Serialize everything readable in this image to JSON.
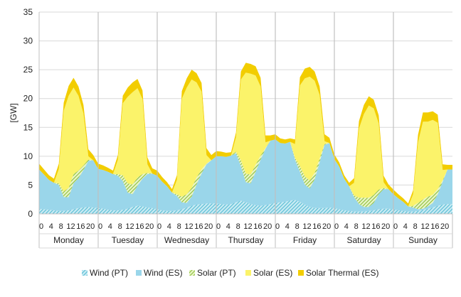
{
  "chart_data": {
    "type": "area",
    "stacked": true,
    "ylabel": "[GW]",
    "ylim": [
      0,
      35
    ],
    "yticks": [
      "0",
      "5",
      "10",
      "15",
      "20",
      "25",
      "30",
      "35"
    ],
    "grid": true,
    "legend_position": "bottom",
    "days": [
      "Monday",
      "Tuesday",
      "Wednesday",
      "Thursday",
      "Friday",
      "Saturday",
      "Sunday"
    ],
    "hour_ticks": [
      "0",
      "4",
      "8",
      "12",
      "16",
      "20"
    ],
    "x": [
      0,
      2,
      4,
      6,
      8,
      10,
      12,
      14,
      16,
      18,
      20,
      22
    ],
    "series": [
      {
        "name": "Wind (PT)",
        "color": "#8fd0dd",
        "pattern": "hatch",
        "values": [
          [
            0.9,
            0.8,
            0.7,
            0.6,
            0.5,
            0.5,
            0.6,
            0.8,
            1.0,
            1.1,
            1.2,
            1.1
          ],
          [
            1.0,
            0.9,
            0.7,
            0.6,
            0.6,
            0.7,
            0.9,
            1.2,
            1.4,
            1.3,
            1.1,
            1.0
          ],
          [
            0.8,
            0.6,
            0.5,
            0.5,
            0.6,
            0.8,
            1.1,
            1.4,
            1.6,
            1.7,
            1.8,
            1.8
          ],
          [
            1.8,
            1.7,
            1.6,
            1.7,
            2.0,
            2.3,
            2.0,
            1.7,
            1.5,
            1.4,
            1.5,
            1.7
          ],
          [
            1.9,
            2.0,
            2.1,
            2.3,
            2.4,
            2.1,
            1.6,
            1.2,
            1.0,
            1.0,
            1.0,
            1.1
          ],
          [
            1.0,
            0.8,
            0.6,
            0.5,
            0.4,
            0.4,
            0.4,
            0.5,
            0.6,
            0.8,
            0.9,
            0.9
          ],
          [
            0.8,
            0.6,
            0.5,
            0.4,
            0.4,
            0.5,
            0.7,
            0.9,
            1.1,
            1.4,
            1.6,
            1.7
          ]
        ]
      },
      {
        "name": "Wind (ES)",
        "color": "#9ad6ea",
        "values": [
          [
            6.8,
            6.0,
            5.2,
            4.8,
            4.5,
            2.4,
            2.3,
            4.5,
            5.2,
            6.5,
            8.0,
            8.2
          ],
          [
            6.8,
            6.7,
            6.6,
            6.3,
            6.0,
            5.0,
            2.8,
            2.2,
            3.5,
            4.8,
            5.8,
            6.0
          ],
          [
            5.8,
            5.0,
            4.3,
            3.2,
            2.5,
            1.2,
            0.8,
            1.6,
            3.5,
            5.3,
            6.8,
            7.5
          ],
          [
            8.2,
            8.3,
            8.3,
            8.4,
            8.5,
            6.0,
            3.5,
            3.6,
            5.8,
            8.0,
            9.8,
            11.0
          ],
          [
            11.0,
            10.3,
            10.1,
            10.2,
            7.0,
            5.2,
            3.5,
            3.2,
            5.0,
            8.0,
            11.0,
            11.2
          ],
          [
            8.5,
            7.4,
            5.5,
            4.3,
            2.5,
            1.3,
            0.8,
            0.7,
            1.3,
            2.6,
            3.4,
            3.4
          ],
          [
            2.6,
            2.1,
            1.6,
            0.9,
            0.7,
            0.3,
            0.2,
            0.4,
            0.8,
            2.0,
            4.0,
            6.0
          ]
        ]
      },
      {
        "name": "Solar (PT)",
        "color": "#b5d96b",
        "pattern": "hatch",
        "values": [
          [
            0.0,
            0.0,
            0.0,
            0.0,
            0.3,
            1.0,
            1.6,
            1.6,
            1.3,
            0.8,
            0.2,
            0.0
          ],
          [
            0.0,
            0.0,
            0.0,
            0.0,
            0.3,
            1.0,
            1.6,
            1.7,
            1.4,
            0.8,
            0.2,
            0.0
          ],
          [
            0.0,
            0.0,
            0.0,
            0.0,
            0.3,
            1.0,
            1.5,
            1.5,
            1.2,
            0.7,
            0.1,
            0.0
          ],
          [
            0.0,
            0.0,
            0.0,
            0.0,
            0.3,
            1.0,
            1.5,
            1.5,
            1.2,
            0.7,
            0.1,
            0.0
          ],
          [
            0.0,
            0.0,
            0.0,
            0.0,
            0.3,
            1.0,
            1.4,
            1.4,
            1.1,
            0.6,
            0.1,
            0.0
          ],
          [
            0.0,
            0.0,
            0.0,
            0.0,
            0.3,
            1.1,
            1.6,
            1.6,
            1.4,
            0.8,
            0.2,
            0.0
          ],
          [
            0.0,
            0.0,
            0.0,
            0.0,
            0.3,
            1.1,
            1.6,
            1.7,
            1.4,
            0.9,
            0.2,
            0.0
          ]
        ]
      },
      {
        "name": "Solar (ES)",
        "color": "#fbf36a",
        "values": [
          [
            0.0,
            0.0,
            0.0,
            0.0,
            2.5,
            14.0,
            16.0,
            15.0,
            13.0,
            9.0,
            0.6,
            0.0
          ],
          [
            0.0,
            0.0,
            0.0,
            0.0,
            2.5,
            12.5,
            15.0,
            16.0,
            15.5,
            13.0,
            1.5,
            0.0
          ],
          [
            0.0,
            0.0,
            0.0,
            0.0,
            2.5,
            17.0,
            18.5,
            18.8,
            16.5,
            13.5,
            1.5,
            0.0
          ],
          [
            0.0,
            0.0,
            0.0,
            0.0,
            2.5,
            14.0,
            17.5,
            17.5,
            15.5,
            12.0,
            1.0,
            0.0
          ],
          [
            0.0,
            0.0,
            0.0,
            0.0,
            2.4,
            14.0,
            17.0,
            18.0,
            16.0,
            11.0,
            0.5,
            0.0
          ],
          [
            0.0,
            0.0,
            0.0,
            0.0,
            2.2,
            12.0,
            14.5,
            16.0,
            15.0,
            11.5,
            1.0,
            0.0
          ],
          [
            0.0,
            0.0,
            0.0,
            0.0,
            2.0,
            10.5,
            13.5,
            13.0,
            13.0,
            11.5,
            1.8,
            0.0
          ]
        ]
      },
      {
        "name": "Solar Thermal (ES)",
        "color": "#f2cd00",
        "values": [
          [
            1.0,
            0.9,
            0.8,
            0.7,
            0.9,
            1.4,
            1.7,
            1.7,
            1.6,
            1.5,
            1.2,
            0.9
          ],
          [
            0.9,
            0.8,
            0.7,
            0.6,
            0.8,
            1.3,
            1.6,
            1.7,
            1.6,
            1.5,
            1.2,
            0.9
          ],
          [
            0.9,
            0.8,
            0.7,
            0.6,
            0.8,
            1.3,
            1.6,
            1.7,
            1.6,
            1.5,
            1.2,
            0.9
          ],
          [
            0.9,
            0.8,
            0.7,
            0.6,
            0.8,
            1.4,
            1.7,
            1.7,
            1.6,
            1.5,
            1.2,
            0.9
          ],
          [
            0.9,
            0.8,
            0.7,
            0.6,
            0.8,
            1.4,
            1.7,
            1.7,
            1.6,
            1.5,
            1.2,
            0.9
          ],
          [
            0.8,
            0.7,
            0.6,
            0.6,
            0.8,
            1.3,
            1.6,
            1.6,
            1.5,
            1.4,
            1.1,
            0.8
          ],
          [
            0.8,
            0.7,
            0.6,
            0.5,
            0.7,
            1.3,
            1.6,
            1.6,
            1.5,
            1.4,
            1.0,
            0.8
          ]
        ]
      }
    ]
  }
}
